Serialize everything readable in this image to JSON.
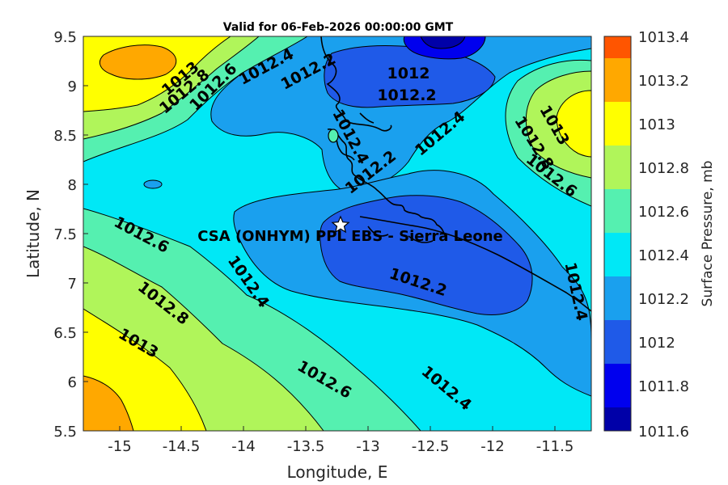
{
  "title": "Valid for 06-Feb-2026 00:00:00 GMT",
  "xlabel": "Longitude, E",
  "ylabel": "Latitude, N",
  "colorbar_label": "Surface Pressure, mb",
  "station_label": "CSA (ONHYM) PPL EBS  - Sierra Leone",
  "station": {
    "lon": -13.23,
    "lat": 7.6
  },
  "x_ticks": [
    "-15",
    "-14.5",
    "-14",
    "-13.5",
    "-13",
    "-12.5",
    "-12",
    "-11.5"
  ],
  "y_ticks": [
    "9.5",
    "9",
    "8.5",
    "8",
    "7.5",
    "7",
    "6.5",
    "6",
    "5.5"
  ],
  "colorbar_ticks": [
    "1013.4",
    "1013.2",
    "1013",
    "1012.8",
    "1012.6",
    "1012.4",
    "1012.2",
    "1012",
    "1011.8",
    "1011.6"
  ],
  "colors": {
    "l_1011_6": "#0000a8",
    "l_1011_8": "#0000ee",
    "l_1012_0": "#1f5ae8",
    "l_1012_2": "#1aa0ee",
    "l_1012_4": "#00e8f6",
    "l_1012_6": "#55f0b0",
    "l_1012_8": "#b0f55a",
    "l_1013_0": "#ffff00",
    "l_1013_2": "#ffa800",
    "l_1013_4": "#ff5500"
  },
  "map_data": {
    "type": "contour",
    "variable": "Surface Pressure",
    "unit": "mb",
    "xlim": [
      -15.3,
      -11.25
    ],
    "ylim": [
      5.5,
      9.5
    ],
    "levels": [
      1011.6,
      1011.8,
      1012.0,
      1012.2,
      1012.4,
      1012.6,
      1012.8,
      1013.0,
      1013.2,
      1013.4
    ],
    "contour_labels": [
      "1013",
      "1012.8",
      "1012.6",
      "1012.4",
      "1012.2",
      "1012",
      "1012.2",
      "1012.4",
      "1012.2",
      "1012.4",
      "1013",
      "1012.8",
      "1012.6",
      "1012.6",
      "1012.8",
      "1013",
      "1012.4",
      "1012.2",
      "1012.4",
      "1012.6",
      "1012.4"
    ]
  }
}
